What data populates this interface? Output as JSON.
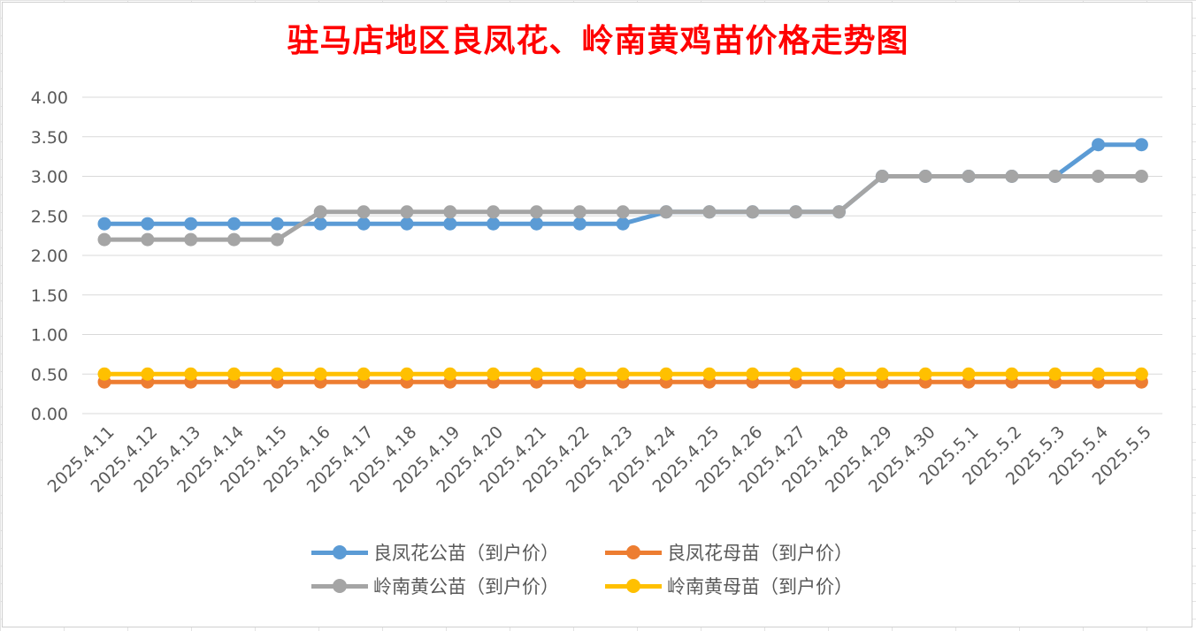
{
  "chart_data": {
    "type": "line",
    "title": "驻马店地区良凤花、岭南黄鸡苗价格走势图",
    "xlabel": "",
    "ylabel": "",
    "ylim": [
      0,
      4
    ],
    "ytick_step": 0.5,
    "ytick_decimals": 2,
    "grid": true,
    "legend_position": "bottom",
    "categories": [
      "2025.4.11",
      "2025.4.12",
      "2025.4.13",
      "2025.4.14",
      "2025.4.15",
      "2025.4.16",
      "2025.4.17",
      "2025.4.18",
      "2025.4.19",
      "2025.4.20",
      "2025.4.21",
      "2025.4.22",
      "2025.4.23",
      "2025.4.24",
      "2025.4.25",
      "2025.4.26",
      "2025.4.27",
      "2025.4.28",
      "2025.4.29",
      "2025.4.30",
      "2025.5.1",
      "2025.5.2",
      "2025.5.3",
      "2025.5.4",
      "2025.5.5"
    ],
    "series": [
      {
        "name": "良凤花公苗（到户价）",
        "color": "#5b9bd5",
        "values": [
          2.4,
          2.4,
          2.4,
          2.4,
          2.4,
          2.4,
          2.4,
          2.4,
          2.4,
          2.4,
          2.4,
          2.4,
          2.4,
          2.55,
          2.55,
          2.55,
          2.55,
          2.55,
          3.0,
          3.0,
          3.0,
          3.0,
          3.0,
          3.4,
          3.4
        ]
      },
      {
        "name": "良凤花母苗（到户价）",
        "color": "#ed7d31",
        "values": [
          0.4,
          0.4,
          0.4,
          0.4,
          0.4,
          0.4,
          0.4,
          0.4,
          0.4,
          0.4,
          0.4,
          0.4,
          0.4,
          0.4,
          0.4,
          0.4,
          0.4,
          0.4,
          0.4,
          0.4,
          0.4,
          0.4,
          0.4,
          0.4,
          0.4
        ]
      },
      {
        "name": "岭南黄公苗（到户价）",
        "color": "#a5a5a5",
        "values": [
          2.2,
          2.2,
          2.2,
          2.2,
          2.2,
          2.55,
          2.55,
          2.55,
          2.55,
          2.55,
          2.55,
          2.55,
          2.55,
          2.55,
          2.55,
          2.55,
          2.55,
          2.55,
          3.0,
          3.0,
          3.0,
          3.0,
          3.0,
          3.0,
          3.0
        ]
      },
      {
        "name": "岭南黄母苗（到户价）",
        "color": "#ffc000",
        "values": [
          0.5,
          0.5,
          0.5,
          0.5,
          0.5,
          0.5,
          0.5,
          0.5,
          0.5,
          0.5,
          0.5,
          0.5,
          0.5,
          0.5,
          0.5,
          0.5,
          0.5,
          0.5,
          0.5,
          0.5,
          0.5,
          0.5,
          0.5,
          0.5,
          0.5
        ]
      }
    ],
    "draw_order": [
      1,
      3,
      0,
      2
    ],
    "legend_order": [
      0,
      1,
      2,
      3
    ]
  }
}
